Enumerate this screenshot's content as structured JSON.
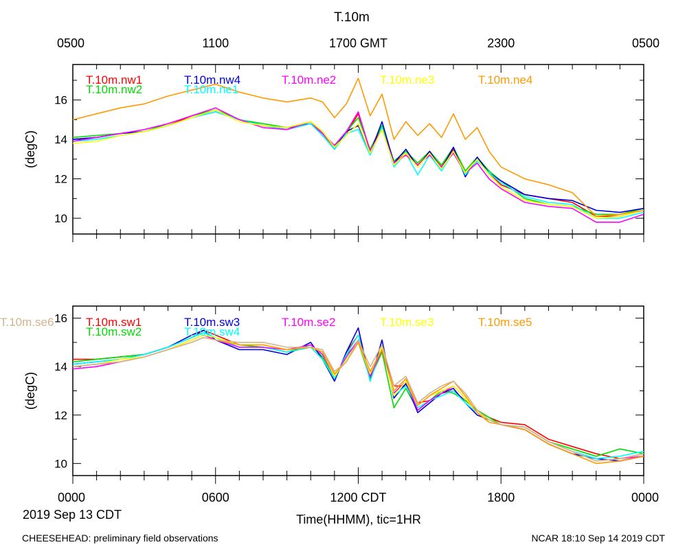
{
  "title": "T.10m",
  "top_axis": {
    "ticks": [
      {
        "hour": 0,
        "label": "0500"
      },
      {
        "hour": 6,
        "label": "1100"
      },
      {
        "hour": 12,
        "label": "1700 GMT"
      },
      {
        "hour": 18,
        "label": "2300"
      },
      {
        "hour": 24,
        "label": "0500"
      }
    ]
  },
  "bottom_axis": {
    "ticks": [
      {
        "hour": 0,
        "label": "0000"
      },
      {
        "hour": 6,
        "label": "0600"
      },
      {
        "hour": 12,
        "label": "1200 CDT"
      },
      {
        "hour": 18,
        "label": "1800"
      },
      {
        "hour": 24,
        "label": "0000"
      }
    ],
    "date_label": "2019 Sep 13 CDT",
    "xlabel": "Time(HHMM), tic=1HR"
  },
  "footer": {
    "left": "CHEESEHEAD: preliminary field observations",
    "right": "NCAR 18:10 Sep 14 2019 CDT"
  },
  "chart_data": [
    {
      "type": "line",
      "ylabel": "(degC)",
      "xlim": [
        0,
        24
      ],
      "ylim": [
        9.2,
        17.8
      ],
      "yticks": [
        10,
        12,
        14,
        16
      ],
      "x": [
        0,
        1,
        2,
        3,
        4,
        5,
        6,
        7,
        8,
        9,
        10,
        10.5,
        11,
        11.5,
        12,
        12.5,
        13,
        13.5,
        14,
        14.5,
        15,
        15.5,
        16,
        16.5,
        17,
        17.5,
        18,
        19,
        20,
        21,
        22,
        23,
        24
      ],
      "series": [
        {
          "name": "T.10m.nw1",
          "color": "#ff0000",
          "values": [
            14.0,
            14.1,
            14.3,
            14.4,
            14.7,
            15.2,
            15.5,
            15.0,
            14.7,
            14.5,
            14.8,
            14.3,
            13.6,
            14.3,
            15.3,
            13.4,
            14.6,
            12.8,
            13.3,
            12.7,
            13.3,
            12.6,
            13.5,
            12.3,
            13.0,
            12.3,
            11.7,
            11.2,
            11.0,
            10.8,
            10.1,
            10.1,
            10.4
          ]
        },
        {
          "name": "T.10m.nw2",
          "color": "#00dd00",
          "values": [
            14.1,
            14.2,
            14.3,
            14.4,
            14.8,
            15.2,
            15.5,
            15.0,
            14.8,
            14.6,
            14.9,
            14.4,
            13.6,
            14.4,
            15.1,
            13.5,
            14.7,
            12.9,
            13.4,
            12.8,
            13.4,
            12.7,
            13.6,
            12.4,
            13.1,
            12.4,
            11.9,
            11.0,
            10.7,
            10.6,
            10.2,
            10.2,
            10.5
          ]
        },
        {
          "name": "T.10m.nw4",
          "color": "#0000dd",
          "values": [
            14.0,
            14.1,
            14.3,
            14.4,
            14.7,
            15.1,
            15.4,
            15.0,
            14.7,
            14.6,
            14.8,
            14.2,
            13.5,
            14.4,
            14.7,
            13.3,
            14.9,
            12.8,
            13.5,
            12.6,
            13.4,
            12.5,
            13.6,
            12.1,
            13.1,
            12.3,
            11.9,
            11.2,
            11.0,
            10.9,
            10.4,
            10.3,
            10.5
          ]
        },
        {
          "name": "T.10m.ne1",
          "color": "#00ffff",
          "values": [
            13.9,
            14.0,
            14.2,
            14.4,
            14.7,
            15.1,
            15.4,
            15.0,
            14.7,
            14.5,
            14.8,
            14.2,
            13.5,
            14.3,
            14.5,
            13.2,
            14.6,
            12.6,
            13.3,
            12.2,
            13.2,
            12.4,
            13.4,
            12.2,
            12.9,
            12.3,
            11.8,
            11.1,
            10.8,
            10.7,
            10.0,
            10.0,
            10.3
          ]
        },
        {
          "name": "T.10m.ne2",
          "color": "#ff00ff",
          "values": [
            13.9,
            14.1,
            14.3,
            14.5,
            14.8,
            15.2,
            15.6,
            15.0,
            14.6,
            14.5,
            14.9,
            14.3,
            13.7,
            14.4,
            15.4,
            13.4,
            14.5,
            12.8,
            13.2,
            12.7,
            13.2,
            12.6,
            13.3,
            12.3,
            12.8,
            12.0,
            11.5,
            10.8,
            10.6,
            10.5,
            9.8,
            9.8,
            10.2
          ]
        },
        {
          "name": "T.10m.ne3",
          "color": "#ffff00",
          "values": [
            13.8,
            13.9,
            14.2,
            14.4,
            14.7,
            15.1,
            15.5,
            14.9,
            14.7,
            14.6,
            14.9,
            14.4,
            13.6,
            14.2,
            14.8,
            13.3,
            14.5,
            12.7,
            13.3,
            12.6,
            13.3,
            12.5,
            13.4,
            12.3,
            13.0,
            12.2,
            11.6,
            10.9,
            10.7,
            10.6,
            10.0,
            10.1,
            10.4
          ]
        },
        {
          "name": "T.10m.ne4",
          "color": "#ff9900",
          "values": [
            15.0,
            15.3,
            15.6,
            15.8,
            16.2,
            16.5,
            16.8,
            16.4,
            16.1,
            15.9,
            16.1,
            15.9,
            15.1,
            15.8,
            17.1,
            15.2,
            16.3,
            14.0,
            14.9,
            14.2,
            14.8,
            14.1,
            15.3,
            14.0,
            14.6,
            13.4,
            12.6,
            12.0,
            11.7,
            11.3,
            10.1,
            10.2,
            10.4
          ]
        }
      ]
    },
    {
      "type": "line",
      "ylabel": "(degC)",
      "xlim": [
        0,
        24
      ],
      "ylim": [
        9.5,
        16.5
      ],
      "yticks": [
        10,
        12,
        14,
        16
      ],
      "x": [
        0,
        1,
        2,
        3,
        4,
        5,
        5.5,
        6,
        7,
        8,
        9,
        10,
        10.5,
        11,
        11.5,
        12,
        12.5,
        13,
        13.5,
        14,
        14.5,
        15,
        15.5,
        16,
        16.5,
        17,
        17.5,
        18,
        19,
        20,
        21,
        22,
        23,
        24
      ],
      "series": [
        {
          "name": "T.10m.sw1",
          "color": "#ff0000",
          "values": [
            14.3,
            14.3,
            14.4,
            14.5,
            14.8,
            15.2,
            15.5,
            15.3,
            14.9,
            14.8,
            14.6,
            14.8,
            14.3,
            13.4,
            14.6,
            15.3,
            13.6,
            14.8,
            13.2,
            13.2,
            12.5,
            12.6,
            12.9,
            13.0,
            12.6,
            12.2,
            11.9,
            11.7,
            11.6,
            11.0,
            10.7,
            10.4,
            10.2,
            10.4
          ]
        },
        {
          "name": "T.10m.sw2",
          "color": "#00dd00",
          "values": [
            14.2,
            14.3,
            14.4,
            14.5,
            14.8,
            15.2,
            15.4,
            15.2,
            14.9,
            14.8,
            14.6,
            14.9,
            14.4,
            13.5,
            14.5,
            15.0,
            13.5,
            14.6,
            12.3,
            13.1,
            12.2,
            12.6,
            13.0,
            12.9,
            12.6,
            12.2,
            11.9,
            11.6,
            11.5,
            10.9,
            10.6,
            10.3,
            10.6,
            10.4
          ]
        },
        {
          "name": "T.10m.sw3",
          "color": "#0000dd",
          "values": [
            14.1,
            14.2,
            14.3,
            14.5,
            14.8,
            15.3,
            15.5,
            15.1,
            14.7,
            14.7,
            14.5,
            15.0,
            14.3,
            13.4,
            14.6,
            15.6,
            13.4,
            15.1,
            12.7,
            13.3,
            12.1,
            12.5,
            12.9,
            13.1,
            12.5,
            12.0,
            11.8,
            11.6,
            11.4,
            10.8,
            10.4,
            10.2,
            10.1,
            10.3
          ]
        },
        {
          "name": "T.10m.sw4",
          "color": "#00ffff",
          "values": [
            14.1,
            14.2,
            14.3,
            14.5,
            14.8,
            15.2,
            15.4,
            15.2,
            14.8,
            14.8,
            14.6,
            14.8,
            14.3,
            13.5,
            14.5,
            15.3,
            13.4,
            14.8,
            12.8,
            13.2,
            12.3,
            12.6,
            12.8,
            13.0,
            12.5,
            12.1,
            11.8,
            11.6,
            11.5,
            10.9,
            10.5,
            10.2,
            10.3,
            10.5
          ]
        },
        {
          "name": "T.10m.se2",
          "color": "#ff00ff",
          "values": [
            13.9,
            14.0,
            14.2,
            14.4,
            14.7,
            15.1,
            15.3,
            15.1,
            14.8,
            14.8,
            14.7,
            14.9,
            14.5,
            13.6,
            14.4,
            15.1,
            13.6,
            14.7,
            12.9,
            13.4,
            12.2,
            12.6,
            12.9,
            13.2,
            12.7,
            12.1,
            11.8,
            11.6,
            11.5,
            10.9,
            10.5,
            10.1,
            10.2,
            10.3
          ]
        },
        {
          "name": "T.10m.se3",
          "color": "#ffff00",
          "values": [
            14.0,
            14.1,
            14.3,
            14.4,
            14.7,
            15.1,
            15.3,
            15.2,
            14.9,
            14.9,
            14.7,
            14.8,
            14.6,
            13.6,
            14.3,
            15.0,
            13.7,
            14.8,
            12.8,
            13.4,
            12.4,
            12.8,
            13.0,
            13.2,
            12.7,
            12.1,
            11.8,
            11.6,
            11.5,
            10.9,
            10.5,
            10.1,
            10.2,
            10.4
          ]
        },
        {
          "name": "T.10m.se5",
          "color": "#ff9900",
          "values": [
            14.0,
            14.1,
            14.2,
            14.4,
            14.7,
            15.0,
            15.2,
            15.1,
            14.9,
            14.9,
            14.7,
            14.8,
            14.6,
            13.7,
            14.2,
            15.0,
            13.8,
            14.7,
            13.0,
            13.5,
            12.4,
            12.8,
            13.1,
            13.4,
            12.8,
            12.1,
            11.7,
            11.6,
            11.4,
            10.8,
            10.4,
            10.0,
            10.1,
            10.3
          ]
        },
        {
          "name": "T.10m.se6",
          "color": "#d2b48c",
          "values": [
            14.0,
            14.1,
            14.2,
            14.4,
            14.7,
            15.0,
            15.2,
            15.1,
            15.0,
            15.0,
            14.8,
            14.8,
            14.7,
            13.8,
            14.2,
            15.1,
            14.0,
            14.9,
            13.2,
            13.6,
            12.5,
            12.9,
            13.2,
            13.4,
            12.9,
            12.2,
            11.8,
            11.6,
            11.5,
            10.9,
            10.5,
            10.1,
            10.2,
            10.4
          ]
        }
      ]
    }
  ]
}
